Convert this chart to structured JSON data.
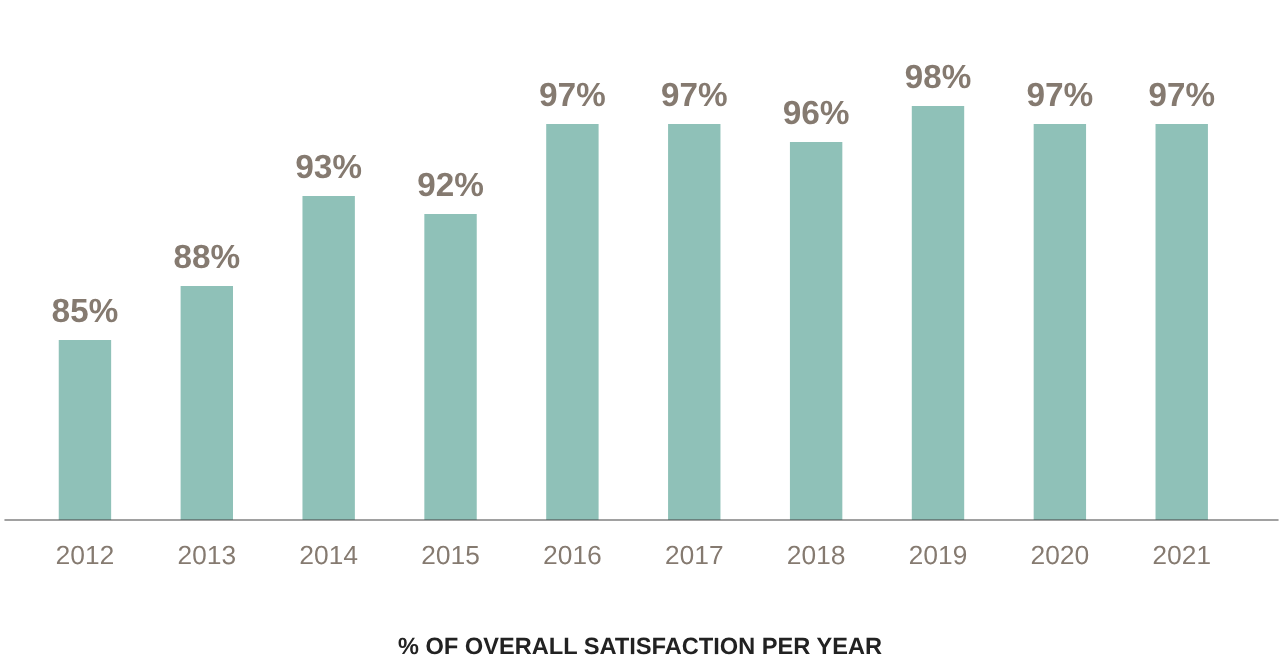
{
  "chart_data": {
    "type": "bar",
    "xlabel": "% OF OVERALL SATISFACTION PER YEAR",
    "categories": [
      "2012",
      "2013",
      "2014",
      "2015",
      "2016",
      "2017",
      "2018",
      "2019",
      "2020",
      "2021"
    ],
    "values": [
      85,
      88,
      93,
      92,
      97,
      97,
      96,
      98,
      97,
      97
    ],
    "value_labels": [
      "85%",
      "88%",
      "93%",
      "92%",
      "97%",
      "97%",
      "96%",
      "98%",
      "97%",
      "97%"
    ],
    "color": "#8fc1b8",
    "ylim": [
      75,
      98
    ],
    "tick_labels": "x",
    "grid": false,
    "legend": false
  }
}
